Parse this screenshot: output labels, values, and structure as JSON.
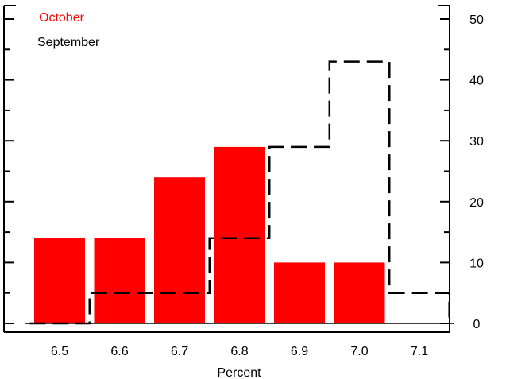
{
  "chart_data": {
    "type": "bar",
    "xlabel": "Percent",
    "ylabel": "",
    "title": "",
    "x_ticks": [
      "6.5",
      "6.6",
      "6.7",
      "6.8",
      "6.9",
      "7.0",
      "7.1"
    ],
    "y_ticks": [
      "0",
      "10",
      "20",
      "30",
      "40",
      "50"
    ],
    "ylim": [
      0,
      52
    ],
    "xlim": [
      6.44,
      7.16
    ],
    "grid": false,
    "legend_position": "top-left",
    "series": [
      {
        "name": "October",
        "style": "bars",
        "color": "#ff0000",
        "x": [
          6.5,
          6.6,
          6.7,
          6.8,
          6.9,
          7.0
        ],
        "values": [
          14,
          14,
          24,
          29,
          10,
          10
        ]
      },
      {
        "name": "September",
        "style": "dashed-step",
        "color": "#000000",
        "x": [
          6.5,
          6.6,
          6.7,
          6.8,
          6.9,
          7.0,
          7.1
        ],
        "values": [
          0,
          5,
          5,
          14,
          29,
          43,
          5
        ]
      }
    ]
  }
}
